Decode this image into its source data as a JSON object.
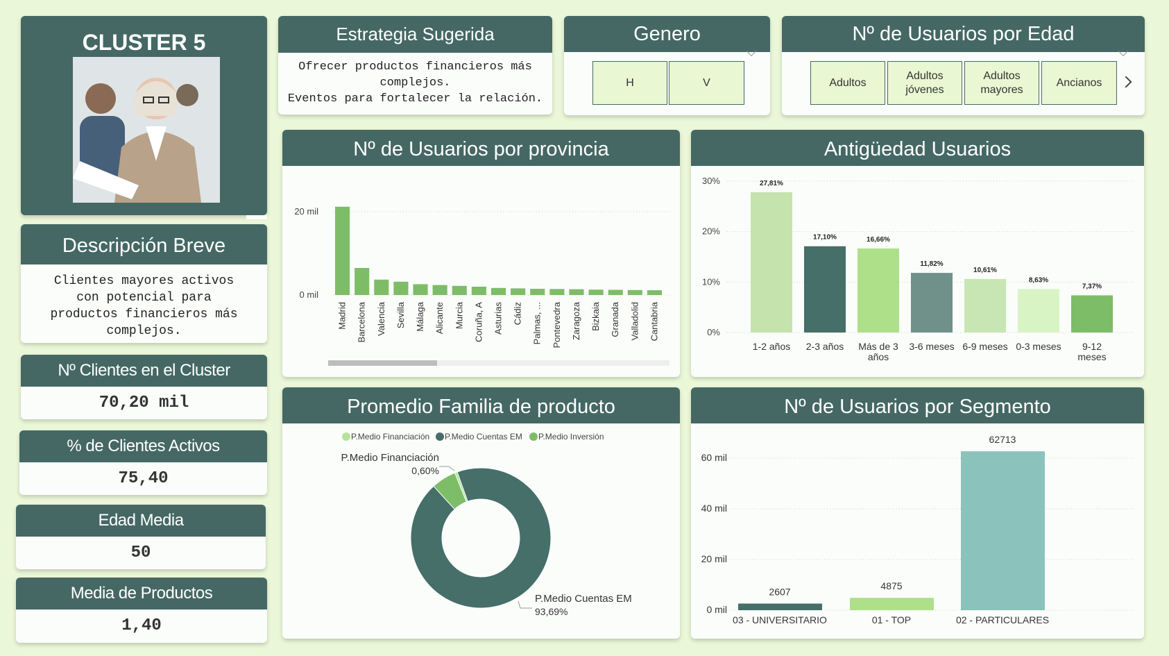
{
  "colors": {
    "header": "#456864",
    "background": "#eaf7d8"
  },
  "cluster": {
    "title": "CLUSTER 5",
    "image": "woman-reading-document-photo"
  },
  "strategy": {
    "title": "Estrategia Sugerida",
    "line1": "Ofrecer productos financieros más",
    "line2": "complejos.",
    "line3": "Eventos para fortalecer la relación."
  },
  "gender": {
    "title": "Genero",
    "options": [
      "H",
      "V"
    ]
  },
  "age_slicer": {
    "title": "Nº de Usuarios por Edad",
    "options": [
      "Adultos",
      "Adultos jóvenes",
      "Adultos mayores",
      "Ancianos"
    ],
    "next_icon": "chevron-right-icon"
  },
  "description": {
    "title": "Descripción Breve",
    "lines": [
      "Clientes mayores activos",
      "con potencial para",
      "productos financieros más",
      "complejos."
    ]
  },
  "kpis": [
    {
      "title": "Nº Clientes en el Cluster",
      "value": "70,20 mil"
    },
    {
      "title": "% de Clientes Activos",
      "value": "75,40"
    },
    {
      "title": "Edad Media",
      "value": "50"
    },
    {
      "title": "Media de Productos",
      "value": "1,40"
    }
  ],
  "chart_data": [
    {
      "type": "bar",
      "title": "Nº de Usuarios por provincia",
      "categories": [
        "Madrid",
        "Barcelona",
        "Valencia",
        "Sevilla",
        "Málaga",
        "Alicante",
        "Murcia",
        "Coruña, A",
        "Asturias",
        "Cádiz",
        "Palmas, ...",
        "Pontevedra",
        "Zaragoza",
        "Bizkaia",
        "Granada",
        "Valladolid",
        "Cantabria"
      ],
      "values": [
        21200,
        6500,
        3700,
        3200,
        2600,
        2400,
        2200,
        2000,
        1700,
        1600,
        1500,
        1450,
        1400,
        1300,
        1250,
        1200,
        1150
      ],
      "yticks": [
        "0 mil",
        "20 mil"
      ],
      "ylim": [
        0,
        22000
      ],
      "color": "#7ebd68"
    },
    {
      "type": "bar",
      "title": "Antigüedad Usuarios",
      "categories": [
        "1-2 años",
        "2-3 años",
        "Más de 3 años",
        "3-6 meses",
        "6-9 meses",
        "0-3 meses",
        "9-12 meses"
      ],
      "values": [
        27.81,
        17.1,
        16.66,
        11.82,
        10.61,
        8.63,
        7.37
      ],
      "labels": [
        "27,81%",
        "17,10%",
        "16,66%",
        "11,82%",
        "10,61%",
        "8,63%",
        "7,37%"
      ],
      "yticks": [
        "0%",
        "10%",
        "20%",
        "30%"
      ],
      "ylim": [
        0,
        30
      ],
      "colors": [
        "#c5e3ad",
        "#456f68",
        "#aee08a",
        "#6f918a",
        "#c8e6b3",
        "#d9f4c4",
        "#7ebd68"
      ]
    },
    {
      "type": "pie",
      "title": "Promedio Familia de producto",
      "legend": [
        "P.Medio Financiación",
        "P.Medio Cuentas EM",
        "P.Medio Inversión"
      ],
      "colors": [
        "#b6e39a",
        "#456f68",
        "#7ebd68"
      ],
      "slices": [
        {
          "name": "P.Medio Financiación",
          "value": 0.6,
          "label": "0,60%"
        },
        {
          "name": "P.Medio Cuentas EM",
          "value": 93.69,
          "label": "93,69%"
        },
        {
          "name": "P.Medio Inversión",
          "value": 5.71
        }
      ]
    },
    {
      "type": "bar",
      "title": "Nº de Usuarios por Segmento",
      "categories": [
        "03 - UNIVERSITARIO",
        "01 - TOP",
        "02 - PARTICULARES"
      ],
      "values": [
        2607,
        4875,
        62713
      ],
      "labels": [
        "2607",
        "4875",
        "62713"
      ],
      "yticks": [
        "0 mil",
        "20 mil",
        "40 mil",
        "60 mil"
      ],
      "ylim": [
        0,
        60000
      ],
      "colors": [
        "#456f68",
        "#aee08a",
        "#8cc2bc"
      ]
    }
  ]
}
